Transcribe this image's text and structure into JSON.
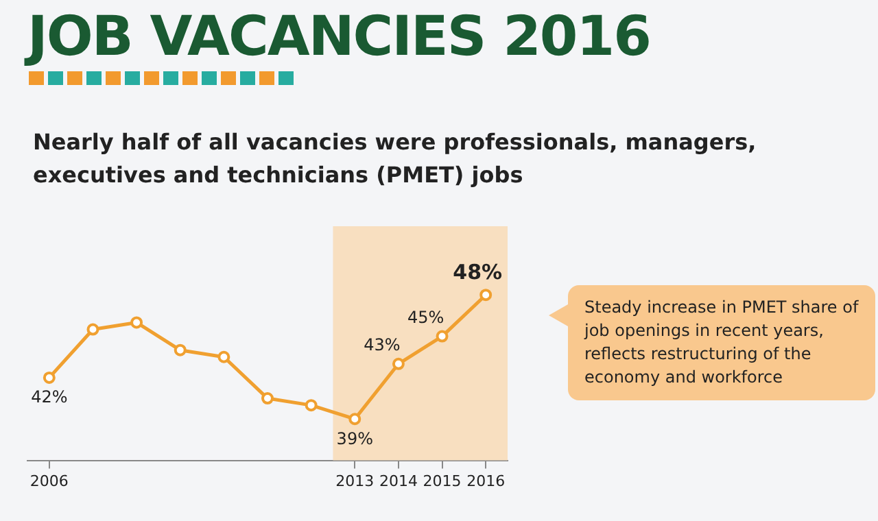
{
  "chart_data": {
    "type": "line",
    "title": "JOB VACANCIES 2016",
    "subtitle": "Nearly half of all vacancies were professionals, managers, executives and technicians (PMET) jobs",
    "categories": [
      "2006",
      null,
      null,
      null,
      null,
      null,
      null,
      "2013",
      "2014",
      "2015",
      "2016"
    ],
    "series": [
      {
        "color": "#f0a030",
        "values": [
          42,
          45.5,
          46,
          44,
          43.5,
          40.5,
          40,
          39,
          43,
          45,
          48
        ],
        "value_labels": [
          "42%",
          null,
          null,
          null,
          null,
          null,
          null,
          "39%",
          "43%",
          "45%",
          "48%"
        ]
      }
    ],
    "marker": "circle",
    "grid": false,
    "legend": false,
    "tick_labels": "x",
    "bands": [
      {
        "axis": "x",
        "from": "2013",
        "to": "2016",
        "color": "#f8dfc0"
      }
    ],
    "annotations": [
      "Steady increase in PMET share of job openings in recent years, reflects restructuring of the economy and workforce"
    ]
  }
}
